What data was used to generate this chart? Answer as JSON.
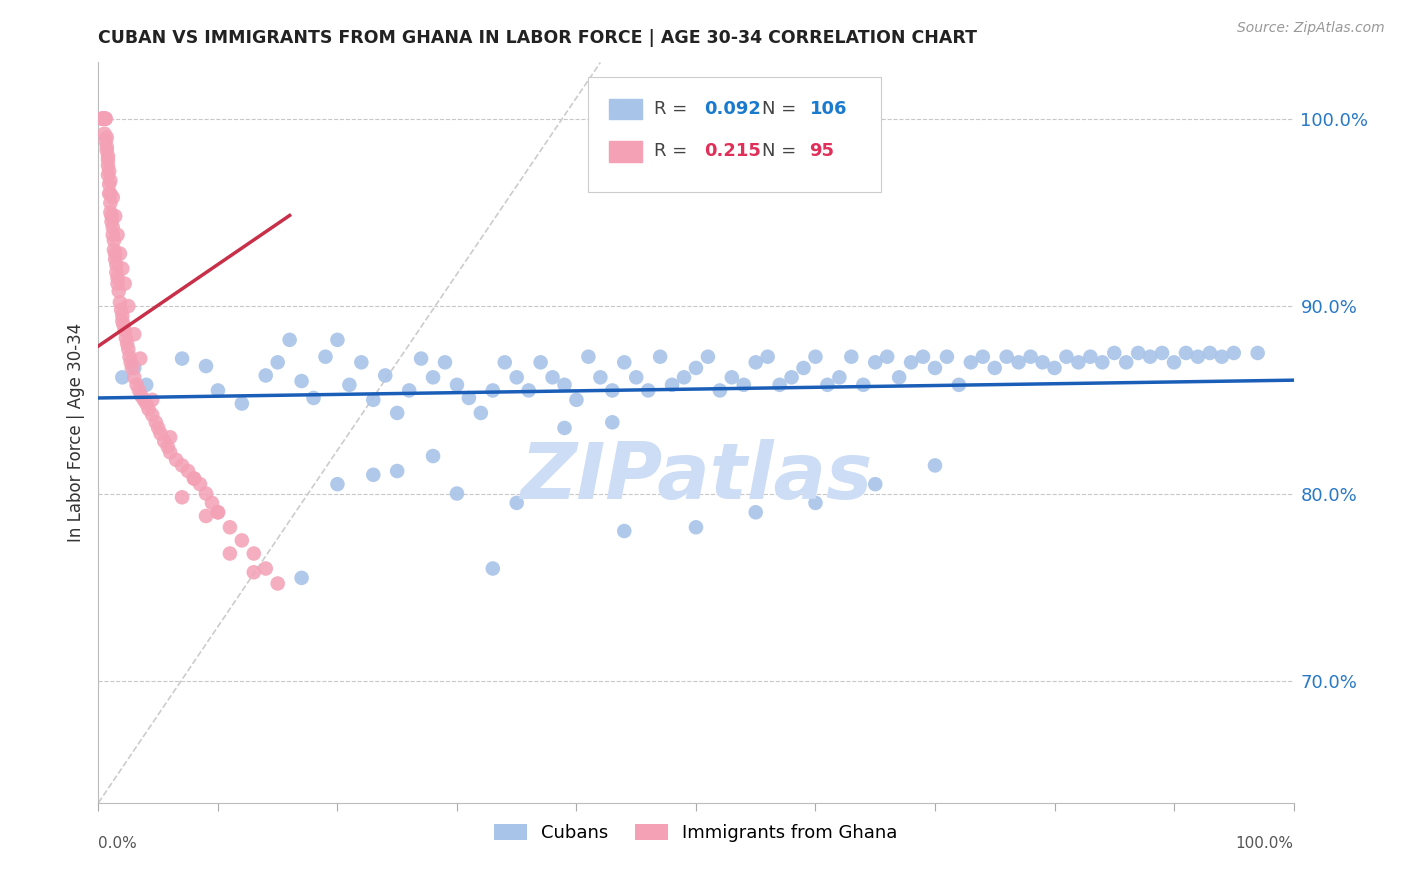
{
  "title": "CUBAN VS IMMIGRANTS FROM GHANA IN LABOR FORCE | AGE 30-34 CORRELATION CHART",
  "source_text": "Source: ZipAtlas.com",
  "ylabel": "In Labor Force | Age 30-34",
  "right_yticks": [
    0.7,
    0.8,
    0.9,
    1.0
  ],
  "right_yticklabels": [
    "70.0%",
    "80.0%",
    "90.0%",
    "100.0%"
  ],
  "xlim": [
    0.0,
    1.0
  ],
  "ylim": [
    0.635,
    1.03
  ],
  "legend_R_blue": "0.092",
  "legend_N_blue": "106",
  "legend_R_pink": "0.215",
  "legend_N_pink": "95",
  "blue_color": "#a8c4e8",
  "pink_color": "#f4a0b5",
  "trendline_blue_color": "#1a5eb8",
  "trendline_pink_color": "#c8304a",
  "legend_R_blue_color": "#1a7acd",
  "legend_N_blue_color": "#1a7acd",
  "legend_R_pink_color": "#e0305a",
  "legend_N_pink_color": "#e0305a",
  "watermark_text": "ZIPatlas",
  "watermark_color": "#ccddf5",
  "grid_color": "#c8c8c8",
  "background_color": "#ffffff",
  "blue_x": [
    0.02,
    0.03,
    0.04,
    0.07,
    0.09,
    0.1,
    0.12,
    0.14,
    0.15,
    0.16,
    0.17,
    0.18,
    0.19,
    0.2,
    0.21,
    0.22,
    0.23,
    0.24,
    0.25,
    0.26,
    0.27,
    0.28,
    0.29,
    0.3,
    0.31,
    0.32,
    0.33,
    0.34,
    0.35,
    0.36,
    0.37,
    0.38,
    0.39,
    0.4,
    0.41,
    0.42,
    0.43,
    0.44,
    0.45,
    0.46,
    0.47,
    0.48,
    0.49,
    0.5,
    0.51,
    0.52,
    0.53,
    0.54,
    0.55,
    0.56,
    0.57,
    0.58,
    0.59,
    0.6,
    0.61,
    0.62,
    0.63,
    0.64,
    0.65,
    0.66,
    0.67,
    0.68,
    0.69,
    0.7,
    0.71,
    0.72,
    0.73,
    0.74,
    0.75,
    0.76,
    0.77,
    0.78,
    0.79,
    0.8,
    0.81,
    0.82,
    0.83,
    0.84,
    0.85,
    0.86,
    0.87,
    0.88,
    0.89,
    0.9,
    0.91,
    0.92,
    0.93,
    0.94,
    0.95,
    0.97,
    0.35,
    0.2,
    0.25,
    0.3,
    0.44,
    0.5,
    0.55,
    0.6,
    0.65,
    0.7,
    0.43,
    0.39,
    0.23,
    0.17,
    0.28,
    0.33
  ],
  "blue_y": [
    0.862,
    0.867,
    0.858,
    0.872,
    0.868,
    0.855,
    0.848,
    0.863,
    0.87,
    0.882,
    0.86,
    0.851,
    0.873,
    0.882,
    0.858,
    0.87,
    0.85,
    0.863,
    0.843,
    0.855,
    0.872,
    0.862,
    0.87,
    0.858,
    0.851,
    0.843,
    0.855,
    0.87,
    0.862,
    0.855,
    0.87,
    0.862,
    0.858,
    0.85,
    0.873,
    0.862,
    0.855,
    0.87,
    0.862,
    0.855,
    0.873,
    0.858,
    0.862,
    0.867,
    0.873,
    0.855,
    0.862,
    0.858,
    0.87,
    0.873,
    0.858,
    0.862,
    0.867,
    0.873,
    0.858,
    0.862,
    0.873,
    0.858,
    0.87,
    0.873,
    0.862,
    0.87,
    0.873,
    0.867,
    0.873,
    0.858,
    0.87,
    0.873,
    0.867,
    0.873,
    0.87,
    0.873,
    0.87,
    0.867,
    0.873,
    0.87,
    0.873,
    0.87,
    0.875,
    0.87,
    0.875,
    0.873,
    0.875,
    0.87,
    0.875,
    0.873,
    0.875,
    0.873,
    0.875,
    0.875,
    0.795,
    0.805,
    0.812,
    0.8,
    0.78,
    0.782,
    0.79,
    0.795,
    0.805,
    0.815,
    0.838,
    0.835,
    0.81,
    0.755,
    0.82,
    0.76
  ],
  "pink_x": [
    0.003,
    0.003,
    0.004,
    0.004,
    0.005,
    0.005,
    0.005,
    0.005,
    0.006,
    0.006,
    0.007,
    0.007,
    0.008,
    0.008,
    0.008,
    0.009,
    0.009,
    0.01,
    0.01,
    0.01,
    0.011,
    0.011,
    0.012,
    0.012,
    0.013,
    0.013,
    0.014,
    0.014,
    0.015,
    0.015,
    0.016,
    0.016,
    0.017,
    0.018,
    0.019,
    0.02,
    0.02,
    0.021,
    0.022,
    0.023,
    0.024,
    0.025,
    0.026,
    0.027,
    0.028,
    0.03,
    0.032,
    0.034,
    0.036,
    0.038,
    0.04,
    0.042,
    0.045,
    0.048,
    0.05,
    0.052,
    0.055,
    0.058,
    0.06,
    0.065,
    0.07,
    0.075,
    0.08,
    0.085,
    0.09,
    0.095,
    0.1,
    0.11,
    0.12,
    0.13,
    0.14,
    0.15,
    0.005,
    0.006,
    0.007,
    0.008,
    0.009,
    0.01,
    0.012,
    0.014,
    0.016,
    0.018,
    0.02,
    0.022,
    0.025,
    0.03,
    0.035,
    0.045,
    0.06,
    0.08,
    0.1,
    0.13,
    0.11,
    0.09,
    0.07
  ],
  "pink_y": [
    1.0,
    1.0,
    1.0,
    1.0,
    1.0,
    1.0,
    1.0,
    1.0,
    1.0,
    1.0,
    0.99,
    0.985,
    0.98,
    0.975,
    0.97,
    0.965,
    0.96,
    0.96,
    0.955,
    0.95,
    0.948,
    0.945,
    0.942,
    0.938,
    0.935,
    0.93,
    0.928,
    0.925,
    0.922,
    0.918,
    0.915,
    0.912,
    0.908,
    0.902,
    0.898,
    0.895,
    0.892,
    0.89,
    0.887,
    0.883,
    0.88,
    0.877,
    0.873,
    0.87,
    0.867,
    0.862,
    0.858,
    0.855,
    0.852,
    0.85,
    0.848,
    0.845,
    0.842,
    0.838,
    0.835,
    0.832,
    0.828,
    0.825,
    0.822,
    0.818,
    0.815,
    0.812,
    0.808,
    0.805,
    0.8,
    0.795,
    0.79,
    0.782,
    0.775,
    0.768,
    0.76,
    0.752,
    0.992,
    0.988,
    0.983,
    0.978,
    0.972,
    0.967,
    0.958,
    0.948,
    0.938,
    0.928,
    0.92,
    0.912,
    0.9,
    0.885,
    0.872,
    0.85,
    0.83,
    0.808,
    0.79,
    0.758,
    0.768,
    0.788,
    0.798
  ]
}
